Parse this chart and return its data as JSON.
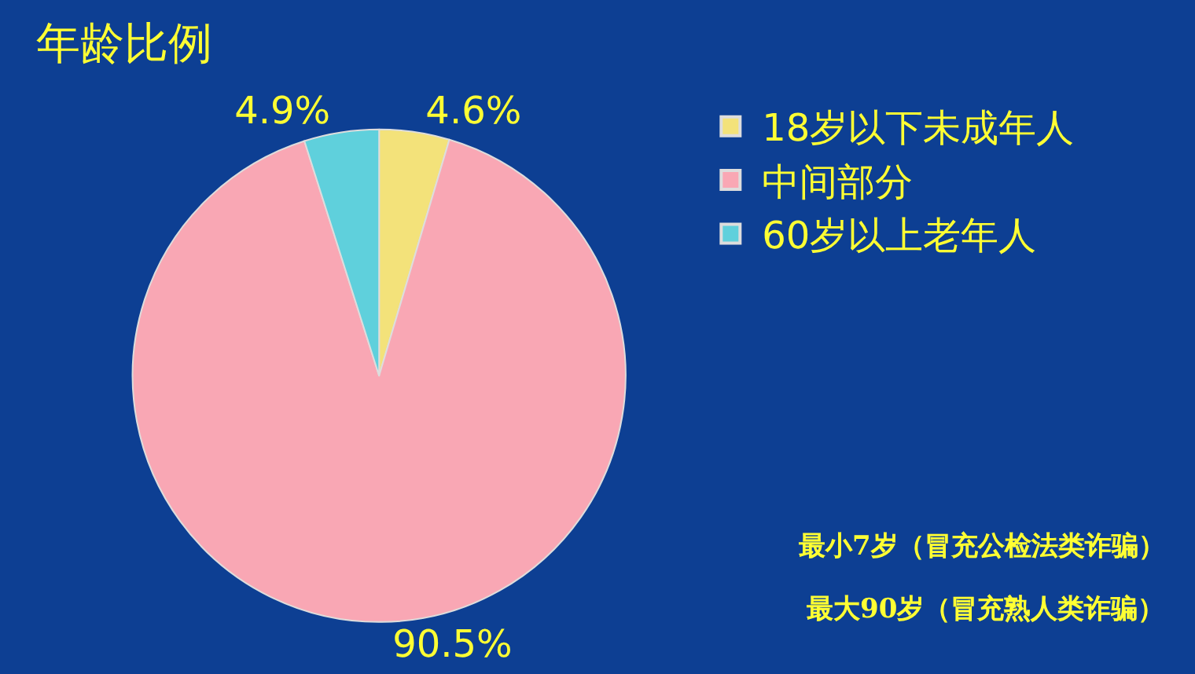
{
  "chart_data": {
    "type": "pie",
    "title": "年龄比例",
    "categories": [
      "18岁以下未成年人",
      "中间部分",
      "60岁以上老年人"
    ],
    "values": [
      4.6,
      90.5,
      4.9
    ],
    "colors": [
      "#f3e27a",
      "#f9a7b4",
      "#5fd0dc"
    ],
    "value_labels": [
      "4.6%",
      "90.5%",
      "4.9%"
    ],
    "legend": "right",
    "annotations": [
      "最小7岁（冒充公检法类诈骗）",
      "最大90岁（冒充熟人类诈骗）"
    ]
  }
}
